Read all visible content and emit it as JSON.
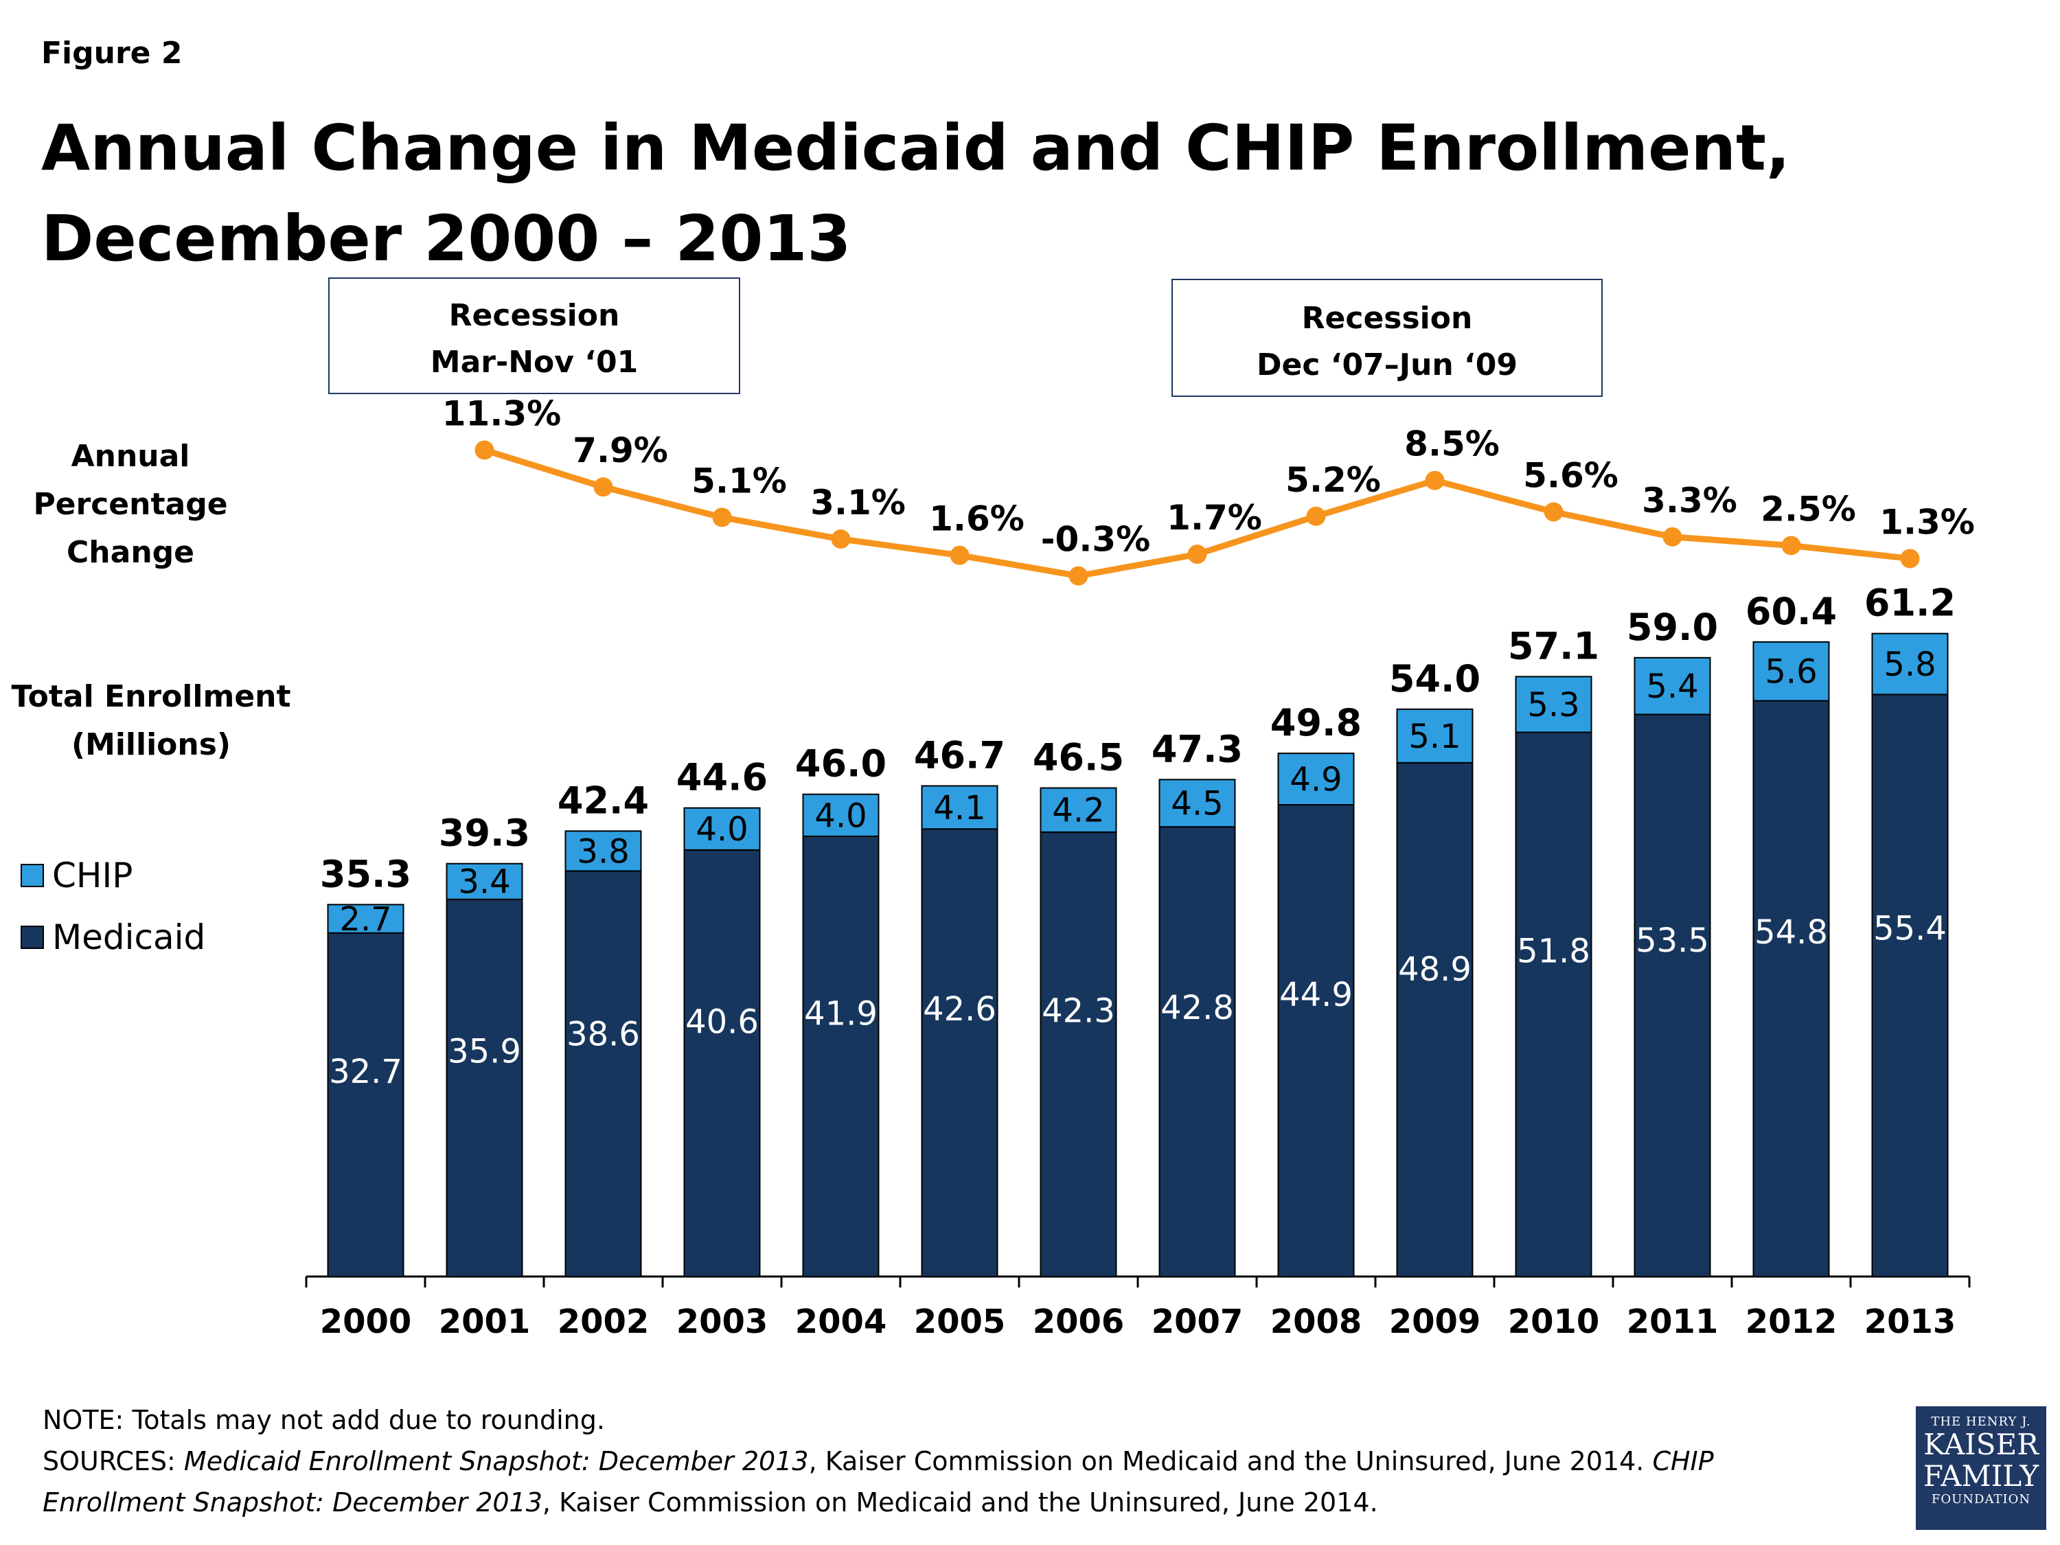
{
  "figure_label": "Figure 2",
  "title_line1": "Annual Change in Medicaid and CHIP Enrollment,",
  "title_line2": "December 2000 – 2013",
  "recessions": [
    {
      "line1": "Recession",
      "line2": "Mar-Nov ‘01"
    },
    {
      "line1": "Recession",
      "line2": "Dec ‘07–Jun ‘09"
    }
  ],
  "pct_label": [
    "Annual",
    "Percentage",
    "Change"
  ],
  "enroll_label": [
    "Total Enrollment",
    "(Millions)"
  ],
  "legend": [
    {
      "name": "CHIP",
      "color": "#2e9ee0"
    },
    {
      "name": "Medicaid",
      "color": "#17365d"
    }
  ],
  "colors": {
    "medicaid": "#17365d",
    "chip": "#2e9ee0",
    "line": "#f7941d"
  },
  "chart_data": {
    "type": "bar",
    "stacked": true,
    "categories": [
      "2000",
      "2001",
      "2002",
      "2003",
      "2004",
      "2005",
      "2006",
      "2007",
      "2008",
      "2009",
      "2010",
      "2011",
      "2012",
      "2013"
    ],
    "series": [
      {
        "name": "Medicaid",
        "values": [
          32.7,
          35.9,
          38.6,
          40.6,
          41.9,
          42.6,
          42.3,
          42.8,
          44.9,
          48.9,
          51.8,
          53.5,
          54.8,
          55.4
        ]
      },
      {
        "name": "CHIP",
        "values": [
          2.7,
          3.4,
          3.8,
          4.0,
          4.0,
          4.1,
          4.2,
          4.5,
          4.9,
          5.1,
          5.3,
          5.4,
          5.6,
          5.8
        ]
      }
    ],
    "totals": [
      "35.3",
      "39.3",
      "42.4",
      "44.6",
      "46.0",
      "46.7",
      "46.5",
      "47.3",
      "49.8",
      "54.0",
      "57.1",
      "59.0",
      "60.4",
      "61.2"
    ],
    "medicaid_labels": [
      "32.7",
      "35.9",
      "38.6",
      "40.6",
      "41.9",
      "42.6",
      "42.3",
      "42.8",
      "44.9",
      "48.9",
      "51.8",
      "53.5",
      "54.8",
      "55.4"
    ],
    "chip_labels": [
      "2.7",
      "3.4",
      "3.8",
      "4.0",
      "4.0",
      "4.1",
      "4.2",
      "4.5",
      "4.9",
      "5.1",
      "5.3",
      "5.4",
      "5.6",
      "5.8"
    ],
    "ylim": [
      0,
      62
    ],
    "line_series": {
      "name": "Annual Percentage Change",
      "categories": [
        "2001",
        "2002",
        "2003",
        "2004",
        "2005",
        "2006",
        "2007",
        "2008",
        "2009",
        "2010",
        "2011",
        "2012",
        "2013"
      ],
      "values": [
        11.3,
        7.9,
        5.1,
        3.1,
        1.6,
        -0.3,
        1.7,
        5.2,
        8.5,
        5.6,
        3.3,
        2.5,
        1.3
      ],
      "labels": [
        "11.3%",
        "7.9%",
        "5.1%",
        "3.1%",
        "1.6%",
        "-0.3%",
        "1.7%",
        "5.2%",
        "8.5%",
        "5.6%",
        "3.3%",
        "2.5%",
        "1.3%"
      ]
    }
  },
  "notes": {
    "note": "NOTE: Totals may not add due to rounding.",
    "src_prefix": "SOURCES: ",
    "src_title1": "Medicaid Enrollment Snapshot: December 2013",
    "src_mid1": ", Kaiser Commission on Medicaid and the Uninsured, June 2014. ",
    "src_title2a": "CHIP",
    "src_title2b": "Enrollment Snapshot: December 2013",
    "src_mid2": ", Kaiser Commission on Medicaid and the Uninsured, June 2014."
  },
  "logo": {
    "line1": "THE HENRY J.",
    "line2": "KAISER",
    "line3": "FAMILY",
    "line4": "FOUNDATION"
  }
}
